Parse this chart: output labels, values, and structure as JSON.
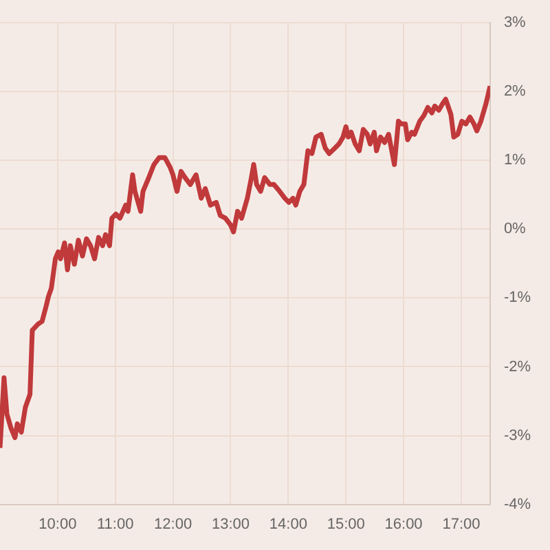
{
  "chart_data": {
    "type": "line",
    "grid": true,
    "marker": "none",
    "line_style": "solid",
    "xlim": [
      9,
      17.5
    ],
    "xticks": [
      {
        "value": 10,
        "label": "10:00"
      },
      {
        "value": 11,
        "label": "11:00"
      },
      {
        "value": 12,
        "label": "12:00"
      },
      {
        "value": 13,
        "label": "13:00"
      },
      {
        "value": 14,
        "label": "14:00"
      },
      {
        "value": 15,
        "label": "15:00"
      },
      {
        "value": 16,
        "label": "16:00"
      },
      {
        "value": 17,
        "label": "17:00"
      }
    ],
    "ylim": [
      -4,
      3
    ],
    "yticks": [
      {
        "value": -4,
        "label": "-4%"
      },
      {
        "value": -3,
        "label": "-3%"
      },
      {
        "value": -2,
        "label": "-2%"
      },
      {
        "value": -1,
        "label": "-1%"
      },
      {
        "value": 0,
        "label": "0%"
      },
      {
        "value": 1,
        "label": "1%"
      },
      {
        "value": 2,
        "label": "2%"
      },
      {
        "value": 3,
        "label": "3%"
      }
    ],
    "x": [
      9.0,
      9.07,
      9.12,
      9.19,
      9.26,
      9.3,
      9.37,
      9.44,
      9.52,
      9.56,
      9.66,
      9.73,
      9.8,
      9.84,
      9.89,
      9.96,
      10.01,
      10.05,
      10.12,
      10.17,
      10.22,
      10.29,
      10.36,
      10.43,
      10.5,
      10.57,
      10.64,
      10.71,
      10.78,
      10.83,
      10.9,
      10.94,
      11.01,
      11.08,
      11.18,
      11.22,
      11.3,
      11.34,
      11.44,
      11.48,
      11.58,
      11.67,
      11.76,
      11.86,
      11.95,
      12.0,
      12.07,
      12.14,
      12.21,
      12.3,
      12.4,
      12.49,
      12.56,
      12.65,
      12.75,
      12.82,
      12.91,
      13.0,
      13.05,
      13.12,
      13.19,
      13.29,
      13.36,
      13.4,
      13.45,
      13.52,
      13.59,
      13.68,
      13.75,
      13.85,
      13.94,
      14.01,
      14.08,
      14.13,
      14.2,
      14.27,
      14.34,
      14.41,
      14.48,
      14.57,
      14.64,
      14.71,
      14.81,
      14.88,
      14.95,
      15.0,
      15.04,
      15.09,
      15.16,
      15.23,
      15.3,
      15.37,
      15.42,
      15.49,
      15.53,
      15.6,
      15.67,
      15.74,
      15.84,
      15.91,
      15.96,
      16.03,
      16.07,
      16.14,
      16.19,
      16.28,
      16.35,
      16.42,
      16.49,
      16.54,
      16.61,
      16.68,
      16.73,
      16.82,
      16.87,
      16.94,
      17.01,
      17.08,
      17.15,
      17.22,
      17.27,
      17.34,
      17.43,
      17.5
    ],
    "series": [
      {
        "color": "#c0393b",
        "values": [
          -3.18,
          -2.16,
          -2.69,
          -2.89,
          -3.03,
          -2.83,
          -2.95,
          -2.59,
          -2.4,
          -1.47,
          -1.38,
          -1.34,
          -1.12,
          -0.98,
          -0.86,
          -0.43,
          -0.33,
          -0.43,
          -0.2,
          -0.59,
          -0.24,
          -0.51,
          -0.16,
          -0.39,
          -0.14,
          -0.24,
          -0.43,
          -0.12,
          -0.24,
          -0.08,
          -0.24,
          0.16,
          0.22,
          0.16,
          0.35,
          0.26,
          0.79,
          0.55,
          0.26,
          0.55,
          0.75,
          0.94,
          1.04,
          1.04,
          0.9,
          0.79,
          0.55,
          0.84,
          0.75,
          0.65,
          0.79,
          0.45,
          0.59,
          0.35,
          0.39,
          0.2,
          0.16,
          0.06,
          -0.04,
          0.26,
          0.16,
          0.45,
          0.75,
          0.94,
          0.65,
          0.55,
          0.75,
          0.65,
          0.65,
          0.55,
          0.45,
          0.39,
          0.45,
          0.35,
          0.55,
          0.65,
          1.14,
          1.1,
          1.34,
          1.38,
          1.18,
          1.1,
          1.18,
          1.24,
          1.34,
          1.49,
          1.34,
          1.41,
          1.24,
          1.14,
          1.45,
          1.38,
          1.24,
          1.41,
          1.14,
          1.34,
          1.26,
          1.38,
          0.94,
          1.57,
          1.53,
          1.53,
          1.3,
          1.41,
          1.38,
          1.57,
          1.65,
          1.77,
          1.69,
          1.79,
          1.73,
          1.83,
          1.89,
          1.67,
          1.34,
          1.38,
          1.57,
          1.53,
          1.63,
          1.53,
          1.43,
          1.57,
          1.83,
          2.08
        ]
      }
    ]
  }
}
